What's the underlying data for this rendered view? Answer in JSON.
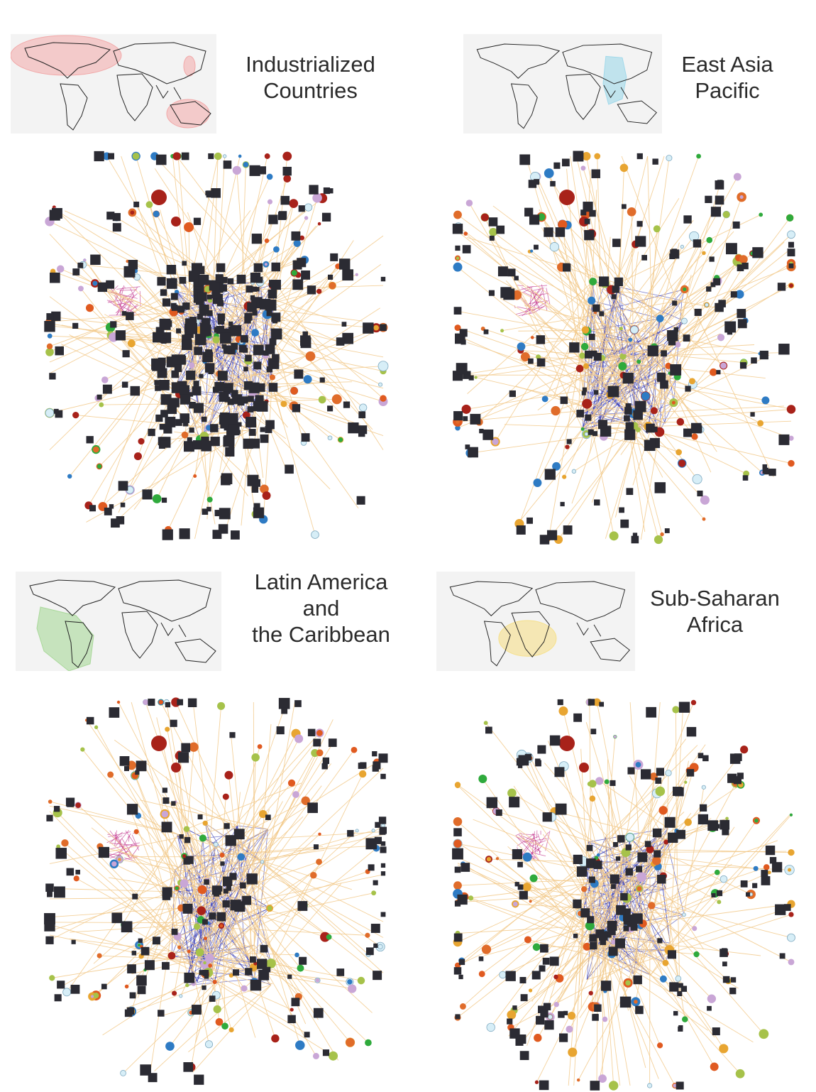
{
  "panels": [
    {
      "key": "industrialized",
      "title_lines": [
        "Industrialized",
        "Countries"
      ],
      "highlight_color": "#f2a8a8",
      "seed": 11
    },
    {
      "key": "east_asia",
      "title_lines": [
        "East Asia",
        "Pacific"
      ],
      "highlight_color": "#9fd8ea",
      "seed": 23
    },
    {
      "key": "latin_america",
      "title_lines": [
        "Latin America",
        "and",
        "the Caribbean"
      ],
      "highlight_color": "#a9d89a",
      "seed": 37
    },
    {
      "key": "sub_saharan",
      "title_lines": [
        "Sub-Saharan",
        "Africa"
      ],
      "highlight_color": "#f6e08a",
      "seed": 53
    }
  ],
  "network_colors": {
    "product_square": "#2b2b33",
    "edge_periphery": "#f2c98a",
    "edge_core": "#3b3fb5",
    "edge_magenta": "#c0308a",
    "node_palette": [
      "#2e7bc4",
      "#2faa3c",
      "#e8a531",
      "#e05a20",
      "#a8221a",
      "#c9a6d6",
      "#d7eef7",
      "#a6c24a",
      "#e06c2a"
    ]
  }
}
